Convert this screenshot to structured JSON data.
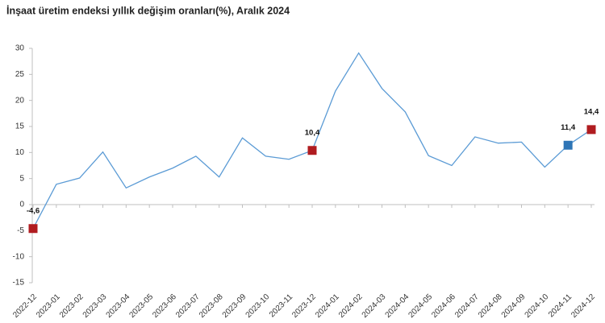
{
  "chart_data": {
    "type": "line",
    "title": "İnşaat üretim endeksi yıllık değişim oranları(%), Aralık 2024",
    "categories": [
      "2022-12",
      "2023-01",
      "2023-02",
      "2023-03",
      "2023-04",
      "2023-05",
      "2023-06",
      "2023-07",
      "2023-08",
      "2023-09",
      "2023-10",
      "2023-11",
      "2023-12",
      "2024-01",
      "2024-02",
      "2024-03",
      "2024-04",
      "2024-05",
      "2024-06",
      "2024-07",
      "2024-08",
      "2024-09",
      "2024-10",
      "2024-11",
      "2024-12"
    ],
    "values": [
      -4.6,
      3.9,
      5.1,
      10.1,
      3.2,
      5.3,
      7.0,
      9.3,
      5.3,
      12.8,
      9.3,
      8.7,
      10.4,
      21.8,
      29.1,
      22.3,
      17.8,
      9.4,
      7.5,
      13.0,
      11.8,
      12.0,
      7.2,
      11.4,
      14.4
    ],
    "value_labels": [
      "-4,6",
      null,
      null,
      null,
      null,
      null,
      null,
      null,
      null,
      null,
      null,
      null,
      "10,4",
      null,
      null,
      null,
      null,
      null,
      null,
      null,
      null,
      null,
      null,
      "11,4",
      "14,4"
    ],
    "marker_colors": [
      "#b01c20",
      null,
      null,
      null,
      null,
      null,
      null,
      null,
      null,
      null,
      null,
      null,
      "#b01c20",
      null,
      null,
      null,
      null,
      null,
      null,
      null,
      null,
      null,
      null,
      "#2e75b6",
      "#b01c20"
    ],
    "color": "#5b9bd5",
    "ylim": [
      -15,
      30
    ],
    "yticks": [
      -15,
      -10,
      -5,
      0,
      5,
      10,
      15,
      20,
      25,
      30
    ]
  }
}
